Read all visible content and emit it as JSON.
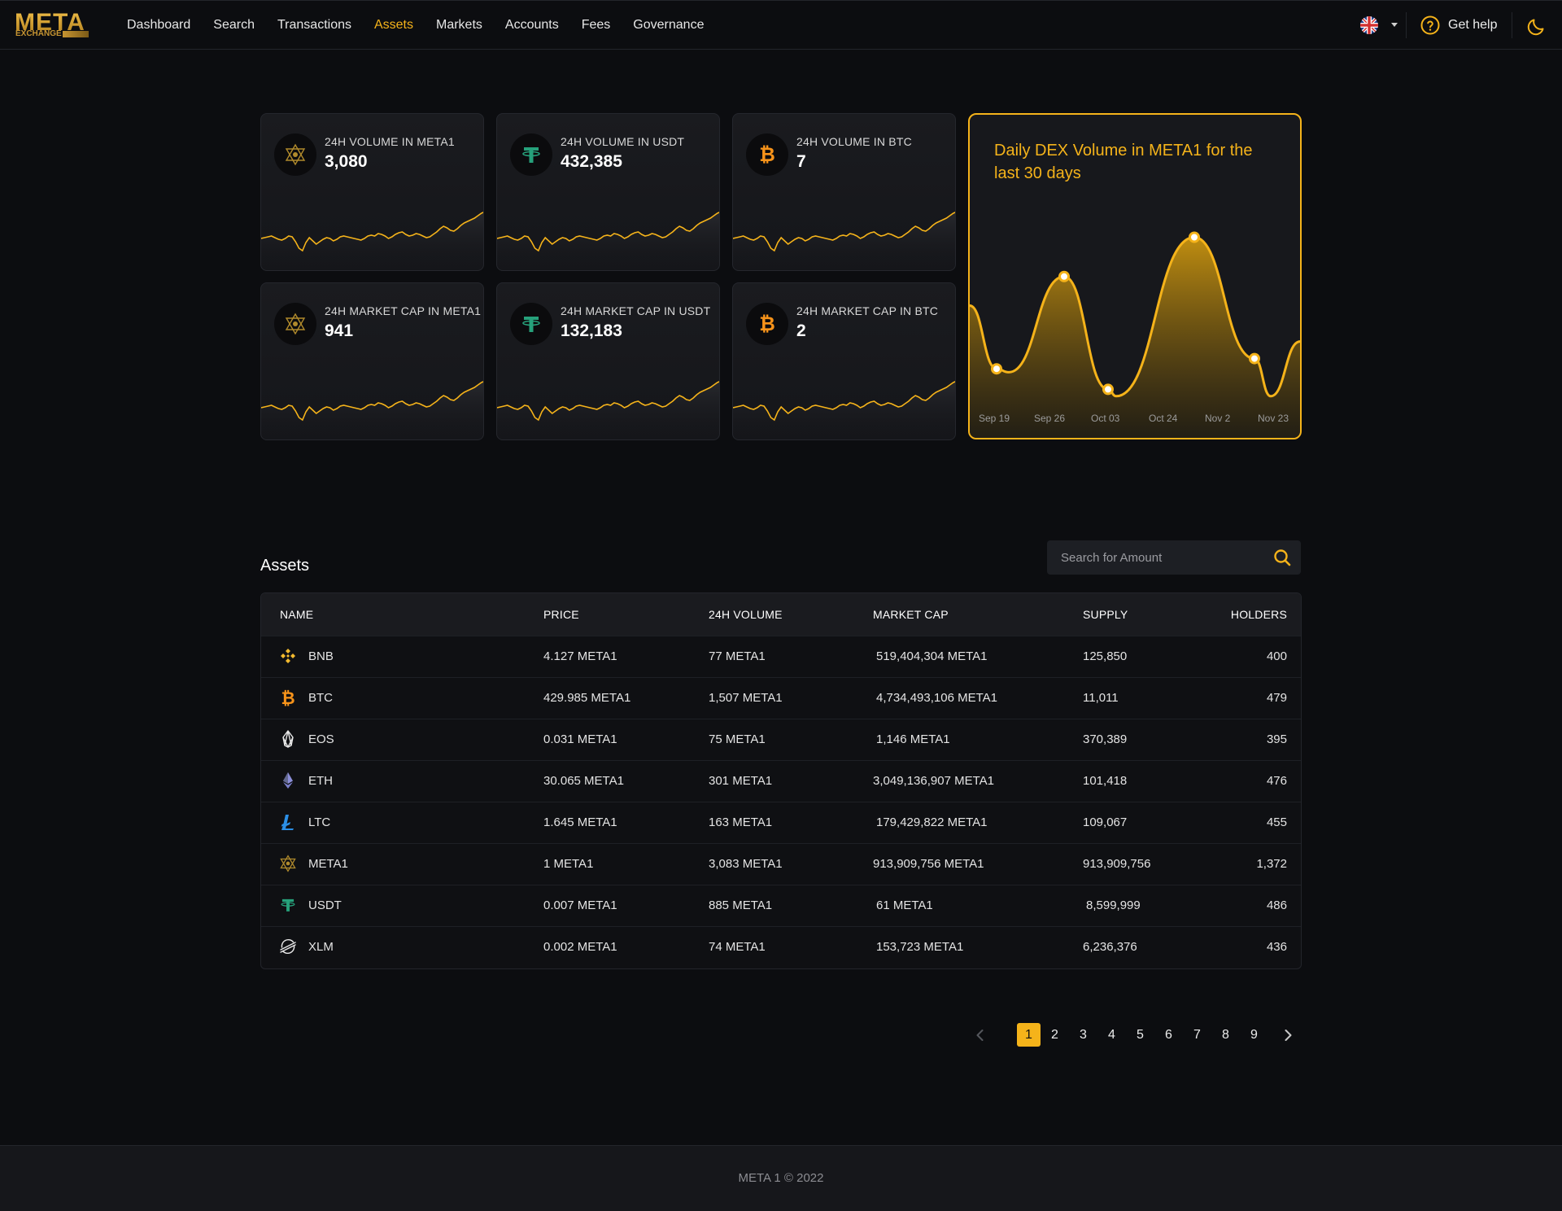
{
  "header": {
    "logo_title": "META",
    "logo_subtitle": "EXCHANGE",
    "nav": [
      "Dashboard",
      "Search",
      "Transactions",
      "Assets",
      "Markets",
      "Accounts",
      "Fees",
      "Governance"
    ],
    "active_nav": "Assets",
    "help_label": "Get help",
    "accent_color": "#f5b31a"
  },
  "stats": [
    {
      "label": "24H VOLUME IN META1",
      "value": "3,080",
      "coin": "meta1-icon"
    },
    {
      "label": "24H VOLUME IN USDT",
      "value": "432,385",
      "coin": "usdt-icon"
    },
    {
      "label": "24H VOLUME IN BTC",
      "value": "7",
      "coin": "btc-icon"
    },
    {
      "label": "24H MARKET CAP IN META1",
      "value": "941",
      "coin": "meta1-icon"
    },
    {
      "label": "24H MARKET CAP IN USDT",
      "value": "132,183",
      "coin": "usdt-icon"
    },
    {
      "label": "24H MARKET CAP IN BTC",
      "value": "2",
      "coin": "btc-icon"
    }
  ],
  "chart_data": {
    "type": "area",
    "title": "Daily DEX Volume in META1 for the last 30 days",
    "categories": [
      "Sep 19",
      "Sep 26",
      "Oct 03",
      "Oct 24",
      "Nov 2",
      "Nov 23"
    ],
    "marked_points": [
      0.18,
      0.72,
      0.06,
      0.95,
      0.24
    ],
    "color": "#f5b31a"
  },
  "assets": {
    "title": "Assets",
    "search_placeholder": "Search for Amount",
    "columns": [
      "NAME",
      "PRICE",
      "24H VOLUME",
      "MARKET CAP",
      "SUPPLY",
      "HOLDERS"
    ],
    "rows": [
      {
        "name": "BNB",
        "icon": "bnb-icon",
        "price": "4.127 META1",
        "volume": "77 META1",
        "market_cap": "519,404,304 META1",
        "supply": "125,850",
        "holders": "400"
      },
      {
        "name": "BTC",
        "icon": "btc-icon",
        "price": "429.985 META1",
        "volume": "1,507 META1",
        "market_cap": "4,734,493,106 META1",
        "supply": "11,011",
        "holders": "479"
      },
      {
        "name": "EOS",
        "icon": "eos-icon",
        "price": "0.031 META1",
        "volume": "75 META1",
        "market_cap": "1,146 META1",
        "supply": "370,389",
        "holders": "395"
      },
      {
        "name": "ETH",
        "icon": "eth-icon",
        "price": "30.065 META1",
        "volume": "301 META1",
        "market_cap": "3,049,136,907 META1",
        "supply": "101,418",
        "holders": "476"
      },
      {
        "name": "LTC",
        "icon": "ltc-icon",
        "price": "1.645 META1",
        "volume": "163 META1",
        "market_cap": "179,429,822 META1",
        "supply": "109,067",
        "holders": "455"
      },
      {
        "name": "META1",
        "icon": "meta1-icon",
        "price": "1 META1",
        "volume": "3,083 META1",
        "market_cap": "913,909,756 META1",
        "supply": "913,909,756",
        "holders": "1,372"
      },
      {
        "name": "USDT",
        "icon": "usdt-icon",
        "price": "0.007 META1",
        "volume": "885 META1",
        "market_cap": "61 META1",
        "supply": "8,599,999",
        "holders": "486"
      },
      {
        "name": "XLM",
        "icon": "xlm-icon",
        "price": "0.002 META1",
        "volume": "74 META1",
        "market_cap": "153,723 META1",
        "supply": "6,236,376",
        "holders": "436"
      }
    ]
  },
  "pagination": {
    "pages": [
      "1",
      "2",
      "3",
      "4",
      "5",
      "6",
      "7",
      "8",
      "9"
    ],
    "current": "1"
  },
  "footer": {
    "text": "META 1 © 2022"
  }
}
